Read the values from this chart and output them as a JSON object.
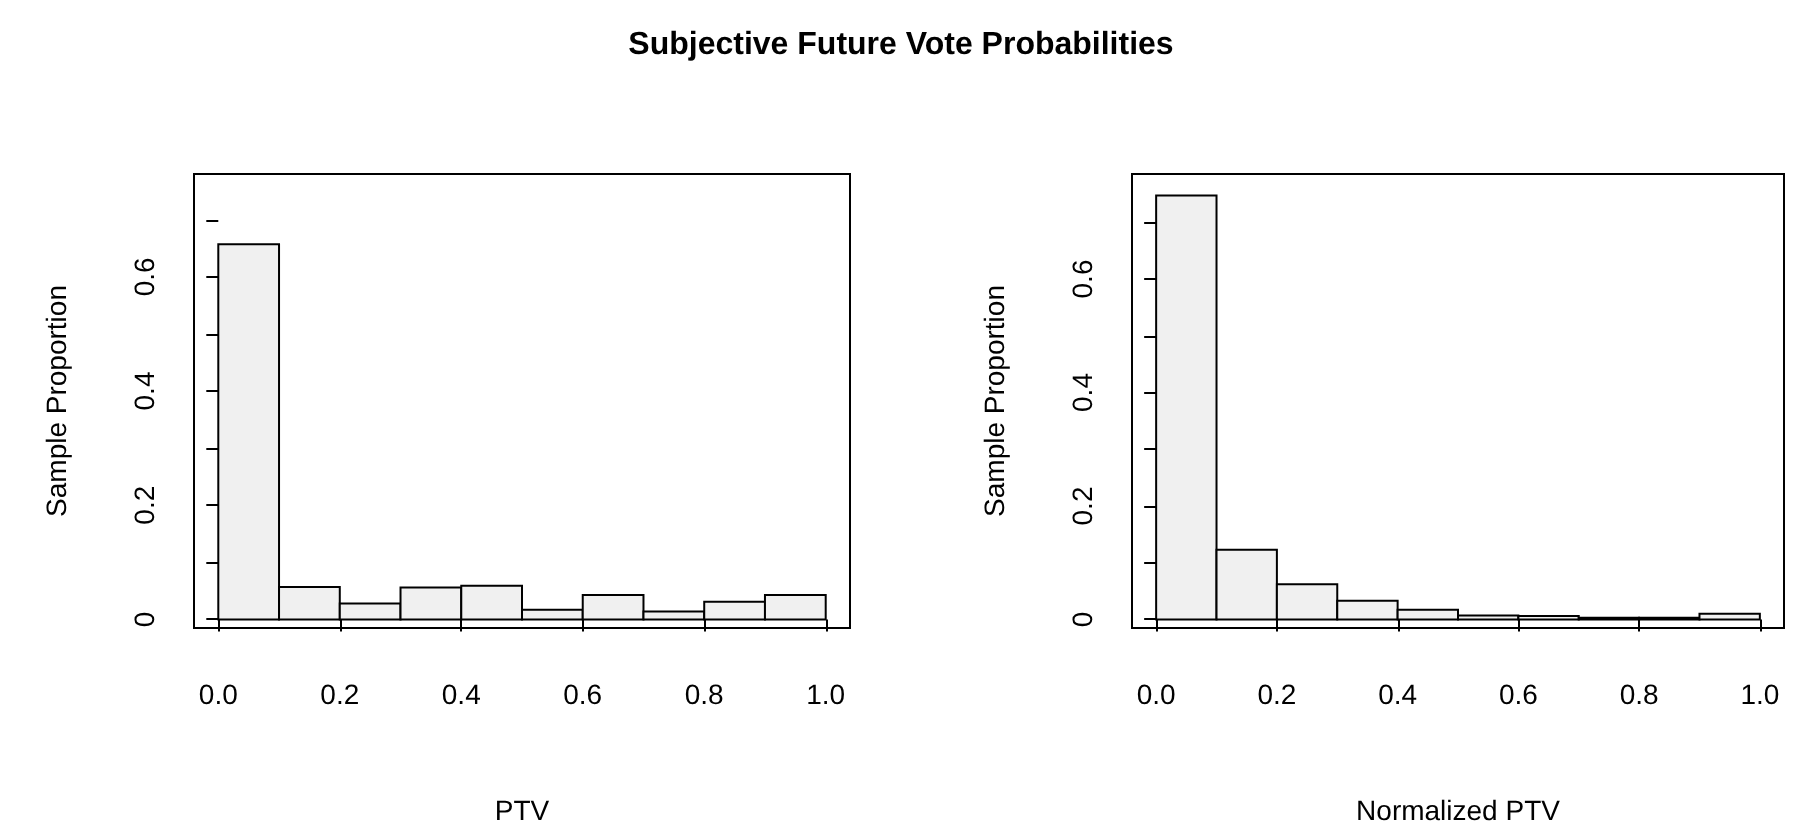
{
  "chart_data": [
    {
      "type": "histogram",
      "title": "Subjective Future Vote Probabilities",
      "xlabel": "PTV",
      "ylabel": "Sample Proportion",
      "color": "#f0f0f0",
      "bins": [
        0,
        0.1,
        0.2,
        0.3,
        0.4,
        0.5,
        0.6,
        0.7,
        0.8,
        0.9,
        1.0
      ],
      "values": [
        0.657,
        0.057,
        0.028,
        0.056,
        0.059,
        0.017,
        0.043,
        0.014,
        0.031,
        0.043
      ],
      "xlim": [
        -0.04,
        1.04
      ],
      "ylim": [
        -0.015,
        0.78
      ],
      "xticks": [
        {
          "value": 0,
          "label": "0.0"
        },
        {
          "value": 0.2,
          "label": "0.2"
        },
        {
          "value": 0.4,
          "label": "0.4"
        },
        {
          "value": 0.6,
          "label": "0.6"
        },
        {
          "value": 0.8,
          "label": "0.8"
        },
        {
          "value": 1,
          "label": "1.0"
        }
      ],
      "yticks": [
        0,
        {
          "value": 0.1,
          "label": null
        },
        0.2,
        {
          "value": 0.3,
          "label": null
        },
        0.4,
        {
          "value": 0.5,
          "label": null
        },
        0.6,
        {
          "value": 0.7,
          "label": null
        }
      ]
    },
    {
      "type": "histogram",
      "xlabel": "Normalized PTV",
      "ylabel": "Sample Proportion",
      "color": "#f0f0f0",
      "bins": [
        0,
        0.1,
        0.2,
        0.3,
        0.4,
        0.5,
        0.6,
        0.7,
        0.8,
        0.9,
        1.0
      ],
      "values": [
        0.747,
        0.123,
        0.062,
        0.033,
        0.017,
        0.007,
        0.006,
        0.003,
        0.003,
        0.01
      ],
      "xlim": [
        -0.04,
        1.04
      ],
      "ylim": [
        -0.015,
        0.785
      ],
      "xticks": [
        {
          "value": 0,
          "label": "0.0"
        },
        {
          "value": 0.2,
          "label": "0.2"
        },
        {
          "value": 0.4,
          "label": "0.4"
        },
        {
          "value": 0.6,
          "label": "0.6"
        },
        {
          "value": 0.8,
          "label": "0.8"
        },
        {
          "value": 1,
          "label": "1.0"
        }
      ],
      "yticks": [
        0,
        {
          "value": 0.1,
          "label": null
        },
        0.2,
        {
          "value": 0.3,
          "label": null
        },
        0.4,
        {
          "value": 0.5,
          "label": null
        },
        0.6,
        {
          "value": 0.7,
          "label": null
        }
      ]
    }
  ]
}
